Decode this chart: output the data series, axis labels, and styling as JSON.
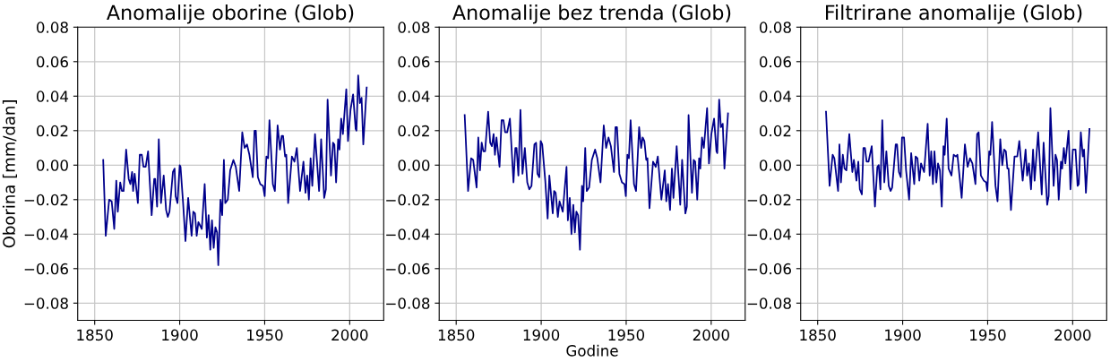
{
  "chart_data": [
    {
      "type": "line",
      "title": "Anomalije oborine (Glob)",
      "ylabel": "Oborina [mm/dan]",
      "xlim": [
        1840,
        2020
      ],
      "xticks": [
        1850,
        1900,
        1950,
        2000
      ],
      "ylim": [
        -0.09,
        0.08
      ],
      "yticks": [
        {
          "value": -0.08,
          "label": "−0.08"
        },
        {
          "value": -0.06,
          "label": "−0.06"
        },
        {
          "value": -0.04,
          "label": "−0.04"
        },
        {
          "value": -0.02,
          "label": "−0.02"
        },
        {
          "value": 0,
          "label": "0.00"
        },
        {
          "value": 0.02,
          "label": "0.02"
        },
        {
          "value": 0.04,
          "label": "0.04"
        },
        {
          "value": 0.06,
          "label": "0.06"
        },
        {
          "value": 0.08,
          "label": "0.08"
        }
      ],
      "grid": true,
      "series": [
        {
          "color": "#00008b",
          "x": [
            1855,
            1856.5,
            1858.5,
            1860,
            1861.5,
            1862.7,
            1863.6,
            1865,
            1866,
            1867,
            1868.5,
            1870,
            1871,
            1872,
            1872.6,
            1873.5,
            1875.4,
            1876.5,
            1877.7,
            1878.7,
            1880,
            1881.4,
            1883.5,
            1885,
            1885.6,
            1886.7,
            1887.7,
            1889,
            1890.6,
            1892,
            1893,
            1894,
            1896,
            1897,
            1897.6,
            1898.7,
            1900,
            1900.5,
            1902,
            1903.4,
            1905,
            1907,
            1908,
            1909,
            1910,
            1911,
            1913,
            1914.7,
            1916,
            1917,
            1918,
            1919,
            1920,
            1921,
            1922,
            1922.7,
            1924,
            1925,
            1926,
            1926.8,
            1928.3,
            1929.7,
            1931.6,
            1933,
            1935,
            1936.8,
            1938.2,
            1939.6,
            1941,
            1943,
            1944,
            1944.8,
            1946,
            1947.4,
            1949,
            1950,
            1951,
            1952,
            1952.8,
            1954.8,
            1956,
            1957.6,
            1959,
            1960,
            1960.8,
            1962,
            1962.7,
            1963.8,
            1966,
            1967.5,
            1968.9,
            1970.8,
            1972.8,
            1974,
            1975,
            1976,
            1977,
            1978,
            1979.6,
            1982,
            1983.2,
            1985,
            1986,
            1987,
            1989,
            1990.2,
            1991,
            1992,
            1993.2,
            1994,
            1995,
            1996,
            1998,
            1999,
            2000.5,
            2002,
            2003.5,
            2004,
            2005,
            2006,
            2007,
            2008,
            2010
          ],
          "values": [
            0.003,
            -0.041,
            -0.02,
            -0.021,
            -0.037,
            -0.009,
            -0.027,
            -0.01,
            -0.015,
            -0.015,
            0.009,
            -0.008,
            -0.011,
            -0.004,
            -0.015,
            -0.005,
            -0.022,
            0.006,
            0.006,
            -0.001,
            -0.001,
            0.008,
            -0.029,
            -0.008,
            -0.008,
            -0.024,
            0.015,
            -0.022,
            -0.006,
            -0.026,
            -0.03,
            -0.027,
            -0.004,
            -0.002,
            -0.018,
            -0.022,
            0.0,
            -0.001,
            -0.022,
            -0.044,
            -0.019,
            -0.041,
            -0.027,
            -0.028,
            -0.041,
            -0.033,
            -0.037,
            -0.011,
            -0.042,
            -0.029,
            -0.049,
            -0.032,
            -0.048,
            -0.036,
            -0.039,
            -0.058,
            -0.02,
            -0.029,
            0.003,
            -0.022,
            -0.02,
            -0.003,
            0.003,
            -0.001,
            -0.015,
            0.019,
            0.01,
            0.012,
            0.006,
            -0.007,
            0.02,
            0.02,
            -0.007,
            -0.011,
            -0.012,
            -0.018,
            0.005,
            0.004,
            0.026,
            -0.011,
            -0.015,
            0.023,
            0.009,
            0.017,
            0.017,
            0.005,
            0.006,
            -0.022,
            0.005,
            0.002,
            0.01,
            -0.015,
            0.002,
            -0.016,
            -0.006,
            -0.02,
            0.004,
            -0.012,
            0.018,
            -0.015,
            0.015,
            -0.019,
            -0.014,
            0.038,
            -0.006,
            0.013,
            0.012,
            -0.01,
            0.015,
            0.009,
            0.027,
            0.018,
            0.044,
            0.014,
            0.032,
            0.041,
            0.021,
            0.02,
            0.052,
            0.036,
            0.039,
            0.012,
            0.045
          ]
        }
      ]
    },
    {
      "type": "line",
      "title": "Anomalije bez trenda (Glob)",
      "xlabel": "Godine",
      "xlim": [
        1840,
        2020
      ],
      "xticks": [
        1850,
        1900,
        1950,
        2000
      ],
      "ylim": [
        -0.09,
        0.08
      ],
      "yticks": [
        {
          "value": -0.08,
          "label": "−0.08"
        },
        {
          "value": -0.06,
          "label": "−0.06"
        },
        {
          "value": -0.04,
          "label": "−0.04"
        },
        {
          "value": -0.02,
          "label": "−0.02"
        },
        {
          "value": 0,
          "label": "0.00"
        },
        {
          "value": 0.02,
          "label": "0.02"
        },
        {
          "value": 0.04,
          "label": "0.04"
        },
        {
          "value": 0.06,
          "label": "0.06"
        },
        {
          "value": 0.08,
          "label": "0.08"
        }
      ],
      "grid": true,
      "series": [
        {
          "color": "#00008b",
          "x": [
            1855,
            1857,
            1858.8,
            1860,
            1862,
            1863,
            1864,
            1865,
            1866,
            1867,
            1868.8,
            1870,
            1871,
            1872,
            1872.8,
            1873.7,
            1875.5,
            1876.7,
            1877.8,
            1878.8,
            1880,
            1881.6,
            1883.7,
            1884.8,
            1885.5,
            1886.6,
            1887.8,
            1889,
            1890.4,
            1891.8,
            1893,
            1894.3,
            1896,
            1897,
            1897.8,
            1898.9,
            1899.7,
            1900.6,
            1902.4,
            1903.8,
            1904.8,
            1906.8,
            1907.6,
            1908.5,
            1909.8,
            1910.8,
            1912.7,
            1914.9,
            1915.7,
            1916.8,
            1917.8,
            1918.9,
            1919.8,
            1920.7,
            1921.7,
            1922.8,
            1924,
            1924.7,
            1925.9,
            1926.8,
            1928.2,
            1929.8,
            1931.7,
            1933,
            1934.9,
            1936.8,
            1938.2,
            1939.6,
            1941,
            1942.8,
            1943.7,
            1944.6,
            1946,
            1947.5,
            1949,
            1949.8,
            1950.7,
            1951.6,
            1952.6,
            1954.6,
            1955.8,
            1957.6,
            1958.8,
            1959.7,
            1960.7,
            1961.8,
            1962.5,
            1963.7,
            1965.8,
            1967.4,
            1968.6,
            1970.7,
            1972.7,
            1973.6,
            1974.6,
            1975.8,
            1976.9,
            1977.8,
            1979.7,
            1981.8,
            1982.9,
            1984.8,
            1985.7,
            1986.7,
            1988.7,
            1989.7,
            1990.6,
            1991.8,
            1992.9,
            1993.6,
            1994.6,
            1995.7,
            1997.6,
            1998.7,
            2000.1,
            2001.7,
            2003.1,
            2003.6,
            2004.7,
            2005.7,
            2006.8,
            2007.8,
            2009.9
          ],
          "values": [
            0.029,
            -0.015,
            0.004,
            0.003,
            -0.013,
            0.016,
            -0.003,
            0.013,
            0.008,
            0.008,
            0.031,
            0.013,
            0.011,
            0.018,
            0.006,
            0.016,
            -0.001,
            0.026,
            0.026,
            0.019,
            0.019,
            0.027,
            -0.01,
            0.01,
            0.01,
            -0.006,
            0.032,
            -0.005,
            0.01,
            -0.01,
            -0.014,
            -0.012,
            0.012,
            0.013,
            -0.005,
            -0.007,
            0.014,
            0.012,
            -0.009,
            -0.031,
            -0.006,
            -0.028,
            -0.015,
            -0.016,
            -0.03,
            -0.021,
            -0.027,
            -0.001,
            -0.032,
            -0.019,
            -0.04,
            -0.023,
            -0.039,
            -0.027,
            -0.029,
            -0.049,
            -0.012,
            -0.021,
            0.01,
            -0.015,
            -0.013,
            0.003,
            0.009,
            0.004,
            -0.01,
            0.023,
            0.01,
            0.016,
            0.011,
            -0.004,
            0.022,
            0.022,
            -0.005,
            -0.01,
            -0.011,
            -0.018,
            0.006,
            0.004,
            0.026,
            -0.011,
            -0.015,
            0.022,
            0.01,
            0.016,
            0.014,
            0.003,
            0.004,
            -0.025,
            0.002,
            -0.001,
            0.005,
            -0.02,
            -0.003,
            -0.021,
            -0.011,
            -0.026,
            -0.002,
            -0.019,
            0.011,
            -0.023,
            0.003,
            -0.028,
            -0.024,
            0.029,
            -0.016,
            0.003,
            0.002,
            -0.02,
            0.004,
            -0.002,
            0.016,
            0.01,
            0.033,
            0.001,
            0.018,
            0.027,
            0.008,
            0.007,
            0.038,
            0.022,
            0.024,
            -0.002,
            0.03
          ]
        }
      ]
    },
    {
      "type": "line",
      "title": "Filtrirane anomalije (Glob)",
      "xlim": [
        1840,
        2020
      ],
      "xticks": [
        1850,
        1900,
        1950,
        2000
      ],
      "ylim": [
        -0.09,
        0.08
      ],
      "yticks": [
        {
          "value": -0.08,
          "label": "−0.08"
        },
        {
          "value": -0.06,
          "label": "−0.06"
        },
        {
          "value": -0.04,
          "label": "−0.04"
        },
        {
          "value": -0.02,
          "label": "−0.02"
        },
        {
          "value": 0,
          "label": "0.00"
        },
        {
          "value": 0.02,
          "label": "0.02"
        },
        {
          "value": 0.04,
          "label": "0.04"
        },
        {
          "value": 0.06,
          "label": "0.06"
        },
        {
          "value": 0.08,
          "label": "0.08"
        }
      ],
      "grid": true,
      "series": [
        {
          "color": "#00008b",
          "x": [
            1854.9,
            1857,
            1858.8,
            1859.8,
            1862,
            1862.8,
            1863.7,
            1864.8,
            1865.8,
            1866.9,
            1868.6,
            1870.4,
            1871.3,
            1872.1,
            1872.8,
            1873.9,
            1874.8,
            1876,
            1876.9,
            1877.8,
            1878.8,
            1879.9,
            1881.8,
            1883.7,
            1885.1,
            1885.9,
            1886.9,
            1888,
            1889.2,
            1890.4,
            1891.8,
            1892.9,
            1893.8,
            1895.9,
            1896.7,
            1897.8,
            1898.9,
            1899.6,
            1900.8,
            1902,
            1903.8,
            1905,
            1906.8,
            1907.6,
            1908.7,
            1909.8,
            1910.8,
            1912.6,
            1914.7,
            1915.9,
            1916.8,
            1917.8,
            1918.7,
            1919.8,
            1920.8,
            1921.9,
            1923,
            1924,
            1924.7,
            1925.9,
            1927,
            1928.7,
            1930,
            1931.4,
            1932.2,
            1934.7,
            1936.6,
            1938.2,
            1939.6,
            1941,
            1942.8,
            1943.8,
            1944.7,
            1946,
            1947.7,
            1949.1,
            1949.8,
            1950.9,
            1951.6,
            1952.6,
            1954.6,
            1955.8,
            1957.4,
            1958.6,
            1959.7,
            1960.7,
            1961.6,
            1962.3,
            1963.7,
            1965.8,
            1967.4,
            1968.6,
            1970.6,
            1972.3,
            1973.2,
            1974.3,
            1975.5,
            1976.7,
            1977.6,
            1979.7,
            1981.8,
            1982.9,
            1985,
            1985.9,
            1986.9,
            1988.8,
            1989.9,
            1990.8,
            1991.8,
            1993.1,
            1993.8,
            1994.8,
            1995.7,
            1997.6,
            1998.7,
            2000.1,
            2001.7,
            2002.9,
            2003.6,
            2004.8,
            2006,
            2006.7,
            2007.8,
            2009.9
          ],
          "values": [
            0.031,
            -0.012,
            0.006,
            0.004,
            -0.015,
            0.012,
            -0.01,
            0.006,
            -0.002,
            -0.003,
            0.018,
            -0.004,
            0.003,
            -0.003,
            -0.009,
            0.002,
            -0.014,
            -0.017,
            0.01,
            0.01,
            0.002,
            0.002,
            0.011,
            -0.024,
            -0.001,
            0.0,
            -0.014,
            0.026,
            -0.01,
            0.008,
            -0.012,
            -0.015,
            -0.013,
            0.012,
            0.012,
            -0.004,
            -0.007,
            0.016,
            0.016,
            -0.003,
            -0.02,
            0.007,
            -0.011,
            0.005,
            0.004,
            -0.009,
            0.001,
            -0.004,
            0.024,
            -0.006,
            0.008,
            -0.011,
            0.008,
            -0.01,
            0.001,
            -0.003,
            -0.024,
            0.011,
            0.006,
            0.027,
            -0.002,
            -0.006,
            0.006,
            0.005,
            0.006,
            -0.019,
            0.012,
            -0.001,
            0.004,
            0.001,
            -0.011,
            0.018,
            0.019,
            -0.006,
            -0.009,
            -0.01,
            -0.015,
            0.008,
            0.006,
            0.025,
            -0.012,
            -0.021,
            0.015,
            0.0,
            0.009,
            0.008,
            -0.002,
            -0.002,
            -0.026,
            0.005,
            0.005,
            0.014,
            -0.009,
            0.009,
            -0.006,
            0.001,
            -0.014,
            0.009,
            -0.009,
            0.019,
            -0.017,
            0.013,
            -0.023,
            -0.018,
            0.033,
            -0.012,
            0.006,
            0.003,
            -0.02,
            0.002,
            -0.002,
            0.01,
            0.001,
            0.02,
            -0.014,
            0.009,
            0.009,
            -0.012,
            -0.011,
            0.019,
            0.005,
            0.009,
            -0.016,
            0.021
          ]
        }
      ]
    }
  ]
}
